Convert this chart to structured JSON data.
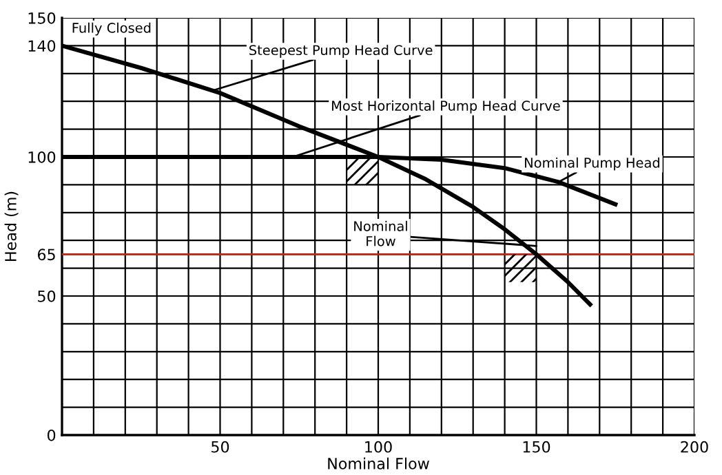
{
  "chart_data": {
    "type": "line",
    "xlabel": "Nominal Flow",
    "ylabel": "Head (m)",
    "x": [
      0,
      25,
      50,
      75,
      100,
      115,
      130,
      140,
      150,
      160,
      167
    ],
    "series": [
      {
        "color": "#000000",
        "values": [
          140,
          132,
          123,
          111,
          100,
          92,
          82,
          74,
          65,
          55,
          47
        ]
      },
      {
        "color": "#000000",
        "x": [
          0,
          50,
          100,
          120,
          140,
          157,
          175
        ],
        "values": [
          100,
          100,
          100,
          99,
          96,
          91,
          83
        ]
      }
    ],
    "xlim": [
      0,
      200
    ],
    "xticks": [
      {
        "value": 10,
        "label": null
      },
      {
        "value": 20,
        "label": null
      },
      {
        "value": 30,
        "label": null
      },
      {
        "value": 40,
        "label": null
      },
      50,
      {
        "value": 60,
        "label": null
      },
      {
        "value": 70,
        "label": null
      },
      {
        "value": 80,
        "label": null
      },
      {
        "value": 90,
        "label": null
      },
      100,
      {
        "value": 110,
        "label": null
      },
      {
        "value": 120,
        "label": null
      },
      {
        "value": 130,
        "label": null
      },
      {
        "value": 140,
        "label": null
      },
      150,
      {
        "value": 160,
        "label": null
      },
      {
        "value": 170,
        "label": null
      },
      {
        "value": 180,
        "label": null
      },
      {
        "value": 190,
        "label": null
      },
      200
    ],
    "ylim": [
      0,
      150
    ],
    "yticks": [
      0,
      {
        "value": 10,
        "label": null
      },
      {
        "value": 20,
        "label": null
      },
      {
        "value": 30,
        "label": null
      },
      {
        "value": 40,
        "label": null
      },
      50,
      {
        "value": 60,
        "label": null
      },
      65,
      {
        "value": 70,
        "label": null
      },
      {
        "value": 80,
        "label": null
      },
      {
        "value": 90,
        "label": null
      },
      100,
      {
        "value": 110,
        "label": null
      },
      {
        "value": 120,
        "label": null
      },
      {
        "value": 130,
        "label": null
      },
      140,
      150
    ],
    "grid": true,
    "marker": "none",
    "line_style": "solid",
    "ref_lines": [
      {
        "axis": "y",
        "value": 65,
        "label": null,
        "color": "#c0281c"
      }
    ],
    "annotations": [
      "Fully Closed",
      {
        "text": "Steepest Pump Head Curve",
        "x": 48,
        "y": 124
      },
      {
        "text": "Most Horizontal Pump Head Curve",
        "x": 73,
        "y": 100
      },
      {
        "text": "Nominal Pump Head",
        "x": 157,
        "y": 91
      },
      {
        "text": "Nominal Flow",
        "x": 150,
        "y": 68
      }
    ]
  }
}
